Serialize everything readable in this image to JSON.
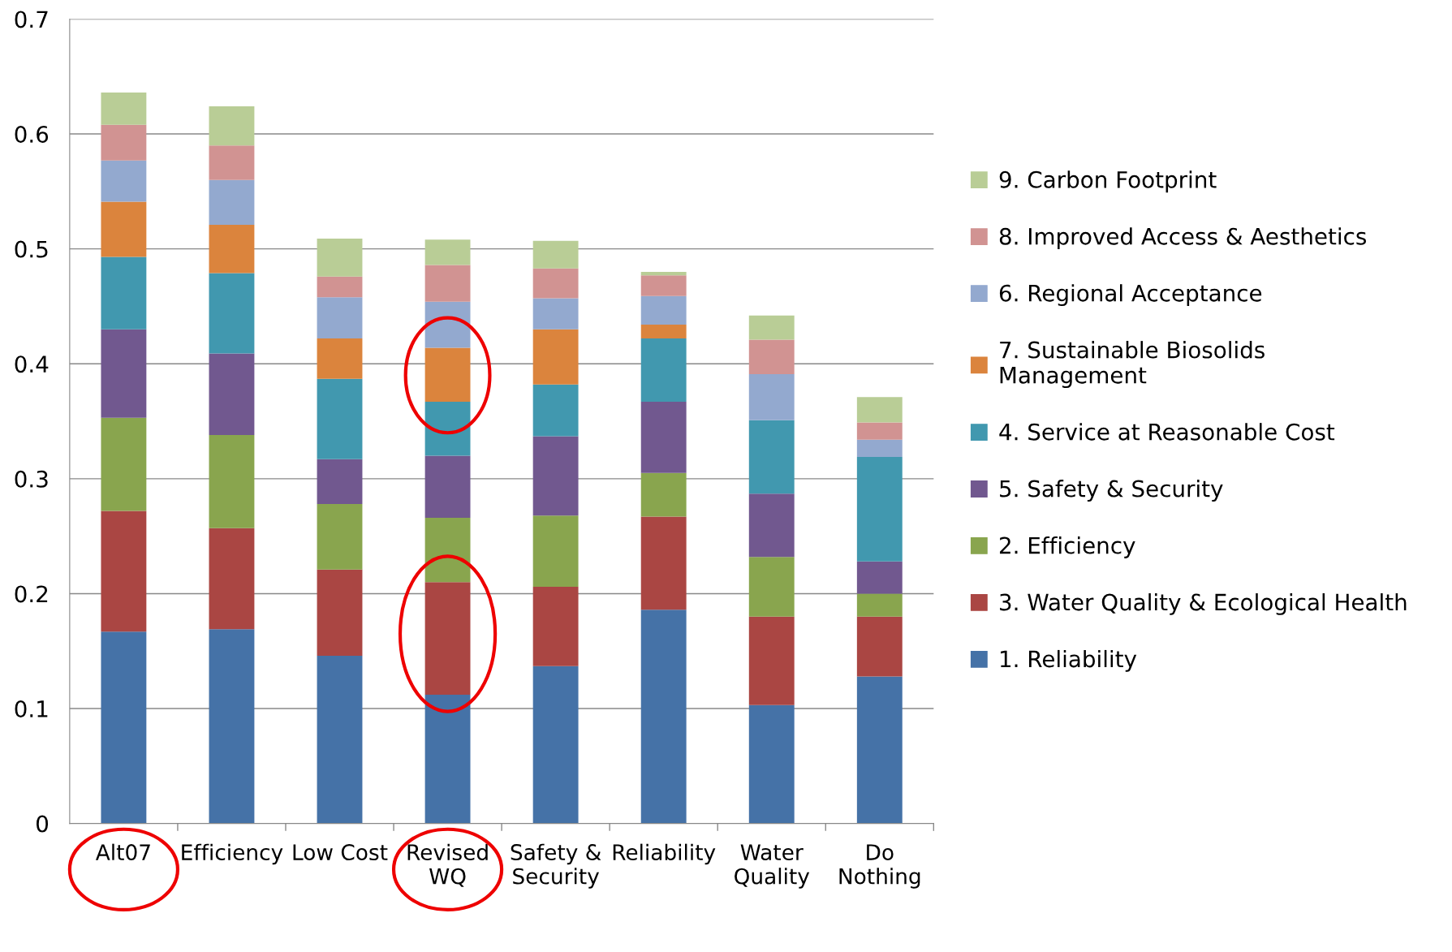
{
  "chart_data": {
    "type": "bar",
    "stacked": true,
    "categories": [
      "Alt07",
      "Efficiency",
      "Low Cost",
      "Revised\nWQ",
      "Safety &\nSecurity",
      "Reliability",
      "Water\nQuality",
      "Do\nNothing"
    ],
    "ylim": [
      0,
      0.7
    ],
    "yticks": [
      0,
      0.1,
      0.2,
      0.3,
      0.4,
      0.5,
      0.6,
      0.7
    ],
    "grid": "y",
    "legend": "right",
    "series": [
      {
        "name": "1. Reliability",
        "color": "#4572a7",
        "values": [
          0.167,
          0.169,
          0.146,
          0.112,
          0.137,
          0.186,
          0.103,
          0.128
        ]
      },
      {
        "name": "3. Water Quality & Ecological Health",
        "color": "#aa4643",
        "values": [
          0.105,
          0.088,
          0.075,
          0.098,
          0.069,
          0.081,
          0.077,
          0.052
        ]
      },
      {
        "name": "2. Efficiency",
        "color": "#89a54e",
        "values": [
          0.081,
          0.081,
          0.057,
          0.056,
          0.062,
          0.038,
          0.052,
          0.02
        ]
      },
      {
        "name": "5. Safety & Security",
        "color": "#71588f",
        "values": [
          0.077,
          0.071,
          0.039,
          0.054,
          0.069,
          0.062,
          0.055,
          0.028
        ]
      },
      {
        "name": "4. Service at Reasonable Cost",
        "color": "#4198af",
        "values": [
          0.063,
          0.07,
          0.07,
          0.047,
          0.045,
          0.055,
          0.064,
          0.091
        ]
      },
      {
        "name": "7. Sustainable Biosolids\nManagement",
        "color": "#db843d",
        "values": [
          0.048,
          0.042,
          0.035,
          0.047,
          0.048,
          0.012,
          0,
          0
        ]
      },
      {
        "name": "6. Regional Acceptance",
        "color": "#93a9cf",
        "values": [
          0.036,
          0.039,
          0.036,
          0.04,
          0.027,
          0.025,
          0.04,
          0.015
        ]
      },
      {
        "name": "8. Improved Access & Aesthetics",
        "color": "#d19392",
        "values": [
          0.031,
          0.03,
          0.018,
          0.032,
          0.026,
          0.018,
          0.03,
          0.015
        ]
      },
      {
        "name": "9. Carbon Footprint",
        "color": "#b9cd96",
        "values": [
          0.028,
          0.034,
          0.033,
          0.022,
          0.024,
          0.003,
          0.021,
          0.022
        ]
      }
    ]
  }
}
